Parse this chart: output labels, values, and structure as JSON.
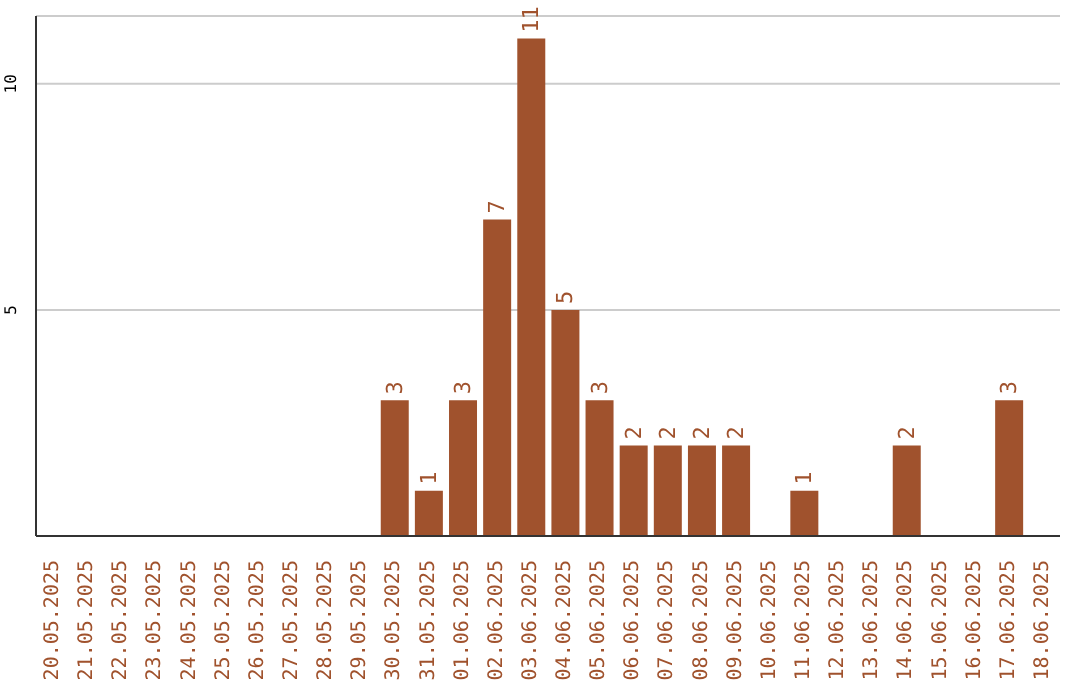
{
  "chart_data": {
    "type": "bar",
    "categories": [
      "20.05.2025",
      "21.05.2025",
      "22.05.2025",
      "23.05.2025",
      "24.05.2025",
      "25.05.2025",
      "26.05.2025",
      "27.05.2025",
      "28.05.2025",
      "29.05.2025",
      "30.05.2025",
      "31.05.2025",
      "01.06.2025",
      "02.06.2025",
      "03.06.2025",
      "04.06.2025",
      "05.06.2025",
      "06.06.2025",
      "07.06.2025",
      "08.06.2025",
      "09.06.2025",
      "10.06.2025",
      "11.06.2025",
      "12.06.2025",
      "13.06.2025",
      "14.06.2025",
      "15.06.2025",
      "16.06.2025",
      "17.06.2025",
      "18.06.2025"
    ],
    "values": [
      0,
      0,
      0,
      0,
      0,
      0,
      0,
      0,
      0,
      0,
      3,
      1,
      3,
      7,
      11,
      5,
      3,
      2,
      2,
      2,
      2,
      0,
      1,
      0,
      0,
      2,
      0,
      0,
      3,
      0
    ],
    "value_labels": [
      null,
      null,
      null,
      null,
      null,
      null,
      null,
      null,
      null,
      null,
      "3",
      "1",
      "3",
      "7",
      "11",
      "5",
      "3",
      "2",
      "2",
      "2",
      "2",
      null,
      "1",
      null,
      null,
      "2",
      null,
      null,
      "3",
      null
    ],
    "color": "#a0522d",
    "ylim": [
      0,
      11.5
    ],
    "yticks": [
      5,
      10
    ],
    "grid": "y"
  }
}
